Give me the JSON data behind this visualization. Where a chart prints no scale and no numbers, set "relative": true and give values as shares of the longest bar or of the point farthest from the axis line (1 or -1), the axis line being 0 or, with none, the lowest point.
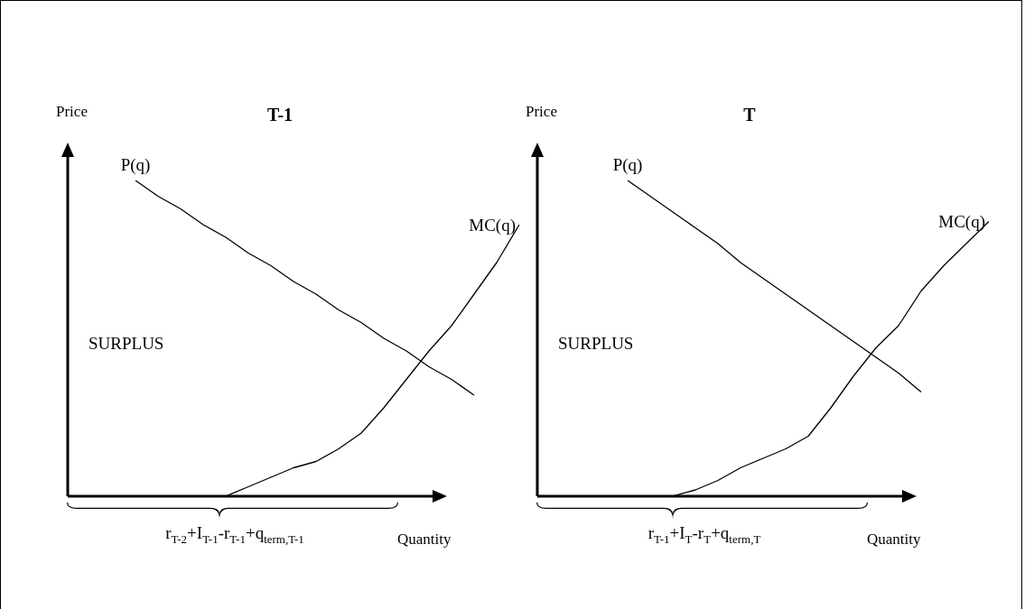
{
  "chart_data": [
    {
      "type": "line",
      "title": "T-1",
      "xlabel": "Quantity",
      "ylabel": "Price",
      "relative": true,
      "legend": false,
      "marker": "none",
      "line_style": "solid",
      "categories": [
        null,
        null,
        null,
        null,
        null,
        null,
        null,
        null,
        null,
        null,
        null,
        null,
        null,
        null,
        null,
        null,
        null,
        null,
        null,
        null,
        null
      ],
      "series": [
        {
          "name": "P(q)",
          "color": "#000000",
          "values": [
            null,
            null,
            null,
            1.0,
            0.95,
            0.91,
            0.86,
            0.82,
            0.77,
            0.73,
            0.68,
            0.64,
            0.59,
            0.55,
            0.5,
            0.46,
            0.41,
            0.37,
            0.32,
            null,
            null
          ]
        },
        {
          "name": "MC(q)",
          "color": "#000000",
          "values": [
            null,
            null,
            null,
            null,
            null,
            null,
            null,
            0.0,
            0.03,
            0.06,
            0.09,
            0.11,
            0.15,
            0.2,
            0.28,
            0.37,
            0.46,
            0.54,
            0.64,
            0.74,
            0.86
          ]
        }
      ],
      "annotations": [
        "SURPLUS",
        "r$_{T-2}$+I$_{T-1}$-r$_{T-1}$+q$_{term,T-1}$"
      ]
    },
    {
      "type": "line",
      "title": "T",
      "xlabel": "Quantity",
      "ylabel": "Price",
      "relative": true,
      "legend": false,
      "marker": "none",
      "line_style": "solid",
      "categories": [
        null,
        null,
        null,
        null,
        null,
        null,
        null,
        null,
        null,
        null,
        null,
        null,
        null,
        null,
        null,
        null,
        null,
        null,
        null,
        null,
        null
      ],
      "series": [
        {
          "name": "P(q)",
          "color": "#000000",
          "values": [
            null,
            null,
            null,
            null,
            1.0,
            0.95,
            0.9,
            0.85,
            0.8,
            0.74,
            0.69,
            0.64,
            0.59,
            0.54,
            0.49,
            0.44,
            0.39,
            0.33,
            null,
            null,
            null
          ]
        },
        {
          "name": "MC(q)",
          "color": "#000000",
          "values": [
            null,
            null,
            null,
            null,
            null,
            null,
            0.0,
            0.02,
            0.05,
            0.09,
            0.12,
            0.15,
            0.19,
            0.28,
            0.38,
            0.47,
            0.54,
            0.65,
            0.73,
            0.8,
            0.87
          ]
        }
      ],
      "annotations": [
        "SURPLUS",
        "r$_{T-1}$+I$_{T}$-r$_{T}$+q$_{term,T}$"
      ]
    }
  ]
}
